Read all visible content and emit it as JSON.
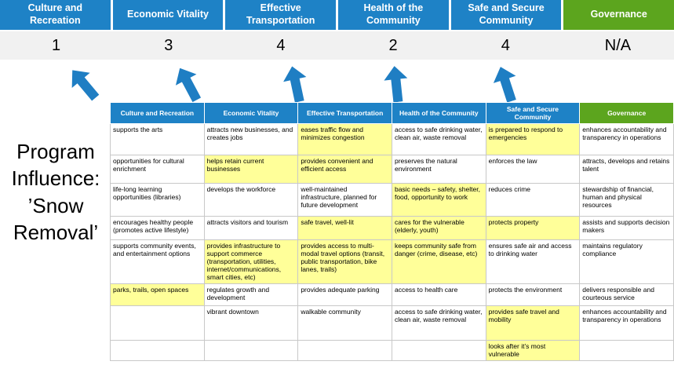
{
  "title": "Program Influence: ’Snow Removal’",
  "colors": {
    "blue": "#1E82C6",
    "green": "#5CA51E",
    "highlight": "#FFFF99",
    "score_band": "#F1F1F1",
    "arrow": "#1F7EC3"
  },
  "icons": {
    "arrow": "up-arrow"
  },
  "priorities": [
    {
      "label": "Culture and Recreation",
      "score": "1",
      "theme": "blue"
    },
    {
      "label": "Economic Vitality",
      "score": "3",
      "theme": "blue"
    },
    {
      "label": "Effective Transportation",
      "score": "4",
      "theme": "blue"
    },
    {
      "label": "Health of the Community",
      "score": "2",
      "theme": "blue"
    },
    {
      "label": "Safe and Secure Community",
      "score": "4",
      "theme": "blue"
    },
    {
      "label": "Governance",
      "score": "N/A",
      "theme": "green"
    }
  ],
  "matrix": {
    "headers": [
      {
        "label": "Culture and Recreation",
        "theme": "blue"
      },
      {
        "label": "Economic Vitality",
        "theme": "blue"
      },
      {
        "label": "Effective Transportation",
        "theme": "blue"
      },
      {
        "label": "Health of the Community",
        "theme": "blue"
      },
      {
        "label": "Safe and Secure Community",
        "theme": "blue"
      },
      {
        "label": "Governance",
        "theme": "green"
      }
    ],
    "rows": [
      [
        {
          "text": "supports the arts",
          "highlight": false
        },
        {
          "text": "attracts new businesses, and creates jobs",
          "highlight": false
        },
        {
          "text": "eases traffic flow and minimizes congestion",
          "highlight": true
        },
        {
          "text": "access to safe drinking water, clean air, waste removal",
          "highlight": false
        },
        {
          "text": "is prepared to respond to emergencies",
          "highlight": true
        },
        {
          "text": "enhances accountability and transparency in operations",
          "highlight": false
        }
      ],
      [
        {
          "text": "opportunities for cultural enrichment",
          "highlight": false
        },
        {
          "text": "helps retain current businesses",
          "highlight": true
        },
        {
          "text": "provides convenient and efficient access",
          "highlight": true
        },
        {
          "text": "preserves the natural environment",
          "highlight": false
        },
        {
          "text": "enforces the law",
          "highlight": false
        },
        {
          "text": "attracts, develops and retains talent",
          "highlight": false
        }
      ],
      [
        {
          "text": "life-long learning opportunities (libraries)",
          "highlight": false
        },
        {
          "text": "develops the workforce",
          "highlight": false
        },
        {
          "text": "well-maintained infrastructure, planned for future development",
          "highlight": false
        },
        {
          "text": "basic needs – safety, shelter, food, opportunity to work",
          "highlight": true
        },
        {
          "text": "reduces crime",
          "highlight": false
        },
        {
          "text": "stewardship of financial, human and physical resources",
          "highlight": false
        }
      ],
      [
        {
          "text": "encourages healthy people (promotes active lifestyle)",
          "highlight": false
        },
        {
          "text": "attracts visitors and tourism",
          "highlight": false
        },
        {
          "text": "safe travel, well-lit",
          "highlight": true
        },
        {
          "text": "cares for the vulnerable (elderly, youth)",
          "highlight": true
        },
        {
          "text": "protects property",
          "highlight": true
        },
        {
          "text": "assists and supports decision makers",
          "highlight": false
        }
      ],
      [
        {
          "text": "supports community events, and entertainment options",
          "highlight": false
        },
        {
          "text": "provides infrastructure to support commerce (transportation, utilities, internet/communications, smart cities, etc)",
          "highlight": true
        },
        {
          "text": "provides access to multi-modal travel options (transit, public transportation, bike lanes, trails)",
          "highlight": true
        },
        {
          "text": "keeps community safe from danger (crime, disease, etc)",
          "highlight": true
        },
        {
          "text": "ensures safe air and access to drinking water",
          "highlight": false
        },
        {
          "text": "maintains regulatory compliance",
          "highlight": false
        }
      ],
      [
        {
          "text": "parks, trails, open spaces",
          "highlight": true
        },
        {
          "text": "regulates growth and development",
          "highlight": false
        },
        {
          "text": "provides adequate parking",
          "highlight": false
        },
        {
          "text": "access to health care",
          "highlight": false
        },
        {
          "text": "protects the environment",
          "highlight": false
        },
        {
          "text": "delivers responsible and courteous service",
          "highlight": false
        }
      ],
      [
        {
          "text": "",
          "highlight": false
        },
        {
          "text": "vibrant downtown",
          "highlight": false
        },
        {
          "text": "walkable community",
          "highlight": false
        },
        {
          "text": "access to safe drinking water, clean air, waste removal",
          "highlight": false
        },
        {
          "text": "provides safe travel and mobility",
          "highlight": true
        },
        {
          "text": "enhances accountability and transparency in operations",
          "highlight": false
        }
      ],
      [
        {
          "text": "",
          "highlight": false
        },
        {
          "text": "",
          "highlight": false
        },
        {
          "text": "",
          "highlight": false
        },
        {
          "text": "",
          "highlight": false
        },
        {
          "text": "looks after it’s most vulnerable",
          "highlight": true
        },
        {
          "text": "",
          "highlight": false
        }
      ]
    ]
  }
}
